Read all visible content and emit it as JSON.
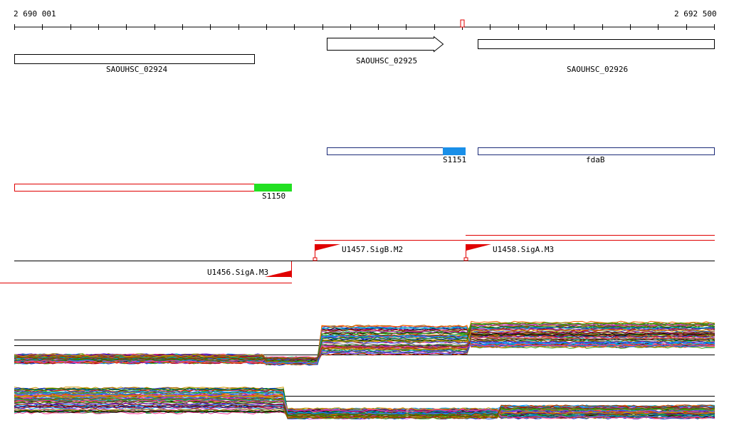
{
  "ruler": {
    "start_label": "2 690 001",
    "end_label": "2 692 500",
    "tick_count": 26
  },
  "genes": [
    {
      "name": "SAOUHSC_02924"
    },
    {
      "name": "SAOUHSC_02925"
    },
    {
      "name": "SAOUHSC_02926"
    }
  ],
  "features": [
    {
      "name": "S1151",
      "color": "#1a8fe8"
    },
    {
      "name": "fdaB"
    },
    {
      "name": "S1150",
      "color": "#22e022"
    }
  ],
  "promoters": [
    {
      "name": "U1457.SigB.M2"
    },
    {
      "name": "U1458.SigA.M3"
    },
    {
      "name": "U1456.SigA.M3"
    }
  ],
  "colors": {
    "red": "#e00000",
    "blue_border": "#1c2b78"
  }
}
